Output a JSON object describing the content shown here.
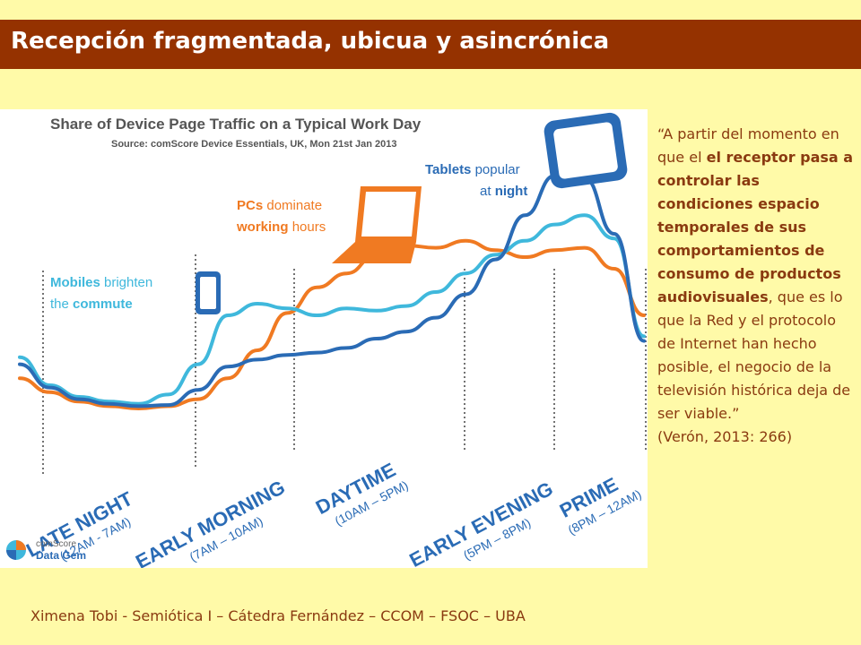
{
  "slide": {
    "title": "Recepción fragmentada, ubicua y asincrónica",
    "footer": "Ximena Tobi - Semiótica I – Cátedra Fernández – CCOM – FSOC – UBA"
  },
  "quote": {
    "open": "“A partir del momento en que el ",
    "bold": "el receptor pasa a controlar las condiciones espacio temporales de sus comportamientos de consumo de productos audiovisuales",
    "rest": ", que es lo que la Red y el protocolo de Internet han hecho posible, el negocio de la televisión histórica deja de ser viable.”",
    "citation": "(Verón, 2013: 266)"
  },
  "chart_data": {
    "type": "line",
    "title": "Share of Device Page Traffic on a Typical Work Day",
    "source": "Source: comScore Device Essentials, UK, Mon 21st Jan 2013",
    "grid": false,
    "series": [
      {
        "name": "Tablets",
        "color": "#2a6bb5",
        "values": [
          0.58,
          0.38,
          0.28,
          0.24,
          0.22,
          0.23,
          0.36,
          0.56,
          0.62,
          0.66,
          0.68,
          0.72,
          0.8,
          0.86,
          0.98,
          1.18,
          1.48,
          1.86,
          2.2,
          2.18,
          1.7,
          0.78
        ]
      },
      {
        "name": "PCs",
        "color": "#f07a22",
        "values": [
          0.46,
          0.34,
          0.26,
          0.22,
          0.2,
          0.22,
          0.28,
          0.46,
          0.7,
          1.02,
          1.24,
          1.36,
          1.52,
          1.6,
          1.58,
          1.64,
          1.56,
          1.5,
          1.56,
          1.58,
          1.4,
          1.0
        ]
      },
      {
        "name": "Mobiles",
        "color": "#3fb8dc",
        "values": [
          0.64,
          0.4,
          0.3,
          0.26,
          0.24,
          0.32,
          0.58,
          1.0,
          1.1,
          1.06,
          1.0,
          1.06,
          1.04,
          1.08,
          1.2,
          1.36,
          1.52,
          1.64,
          1.78,
          1.86,
          1.66,
          0.82
        ]
      }
    ],
    "annotations": {
      "mobiles": {
        "a": "Mobiles",
        "b": "brighten",
        "c": "the",
        "d": "commute"
      },
      "pcs": {
        "a": "PCs",
        "b": "dominate",
        "c": "working",
        "d": "hours"
      },
      "tablets": {
        "a": "Tablets",
        "b": "popular",
        "c": "at",
        "d": "night"
      }
    },
    "periods": [
      {
        "label": "LATE NIGHT",
        "range": "(12AM - 7AM)"
      },
      {
        "label": "EARLY MORNING",
        "range": "(7AM – 10AM)"
      },
      {
        "label": "DAYTIME",
        "range": "(10AM – 5PM)"
      },
      {
        "label": "EARLY EVENING",
        "range": "(5PM – 8PM)"
      },
      {
        "label": "PRIME",
        "range": "(8PM – 12AM)"
      }
    ],
    "brand": {
      "name": "comScore",
      "product": "Data Gem"
    }
  }
}
